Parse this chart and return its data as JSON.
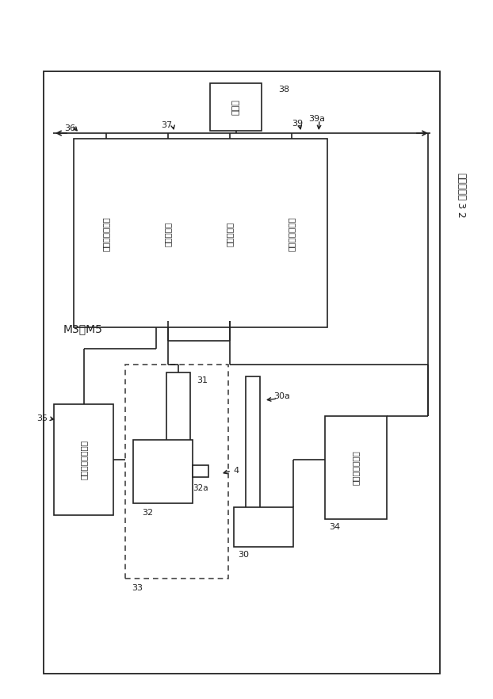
{
  "bg_color": "#ffffff",
  "line_color": "#222222",
  "text_color": "#222222",
  "label_M3M5": "M3～M5",
  "label_32_head": "実装ヘッド",
  "label_32_num": "3 2",
  "box_38_text": "通信部",
  "box_36_texts": [
    "実装情報記憶部",
    "認識処理部",
    "実装制御部",
    "実装位置補正部"
  ],
  "box_35_text": "実装ヘッド駆動部",
  "box_34_text": "テーブル駆動部",
  "labels": {
    "36": "36",
    "37": "37",
    "38": "38",
    "39": "39",
    "39a": "39a",
    "35": "35",
    "31": "31",
    "32": "32",
    "32a": "32a",
    "33": "33",
    "30": "30",
    "30a": "30a",
    "34": "34",
    "4": "4"
  }
}
